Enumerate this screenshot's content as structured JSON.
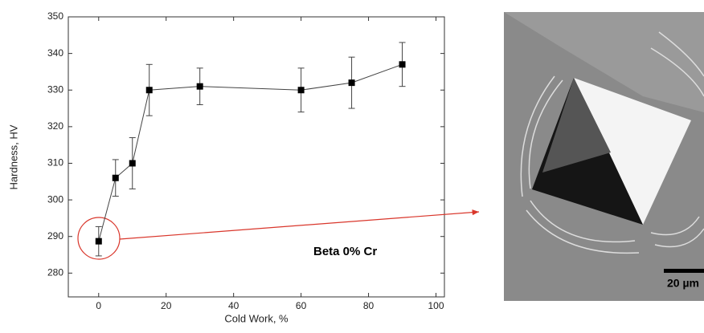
{
  "chart_data": {
    "type": "line",
    "x_label": "Cold Work, %",
    "y_label": "Hardness, HV",
    "x": [
      0,
      5,
      10,
      15,
      30,
      60,
      75,
      90
    ],
    "values": [
      288.7,
      306,
      310,
      330,
      331,
      330,
      332,
      337
    ],
    "errors": [
      4,
      5,
      7,
      7,
      5,
      6,
      7,
      6
    ],
    "color": "#000000",
    "xlim": [
      -9,
      102.5
    ],
    "ylim": [
      273.5,
      350
    ],
    "xticks": [
      0,
      20,
      40,
      60,
      80,
      100
    ],
    "yticks": [
      280,
      290,
      300,
      310,
      320,
      330,
      340,
      350
    ],
    "annotation": "Beta 0% Cr"
  },
  "image": {
    "scale_bar": "20 µm"
  }
}
